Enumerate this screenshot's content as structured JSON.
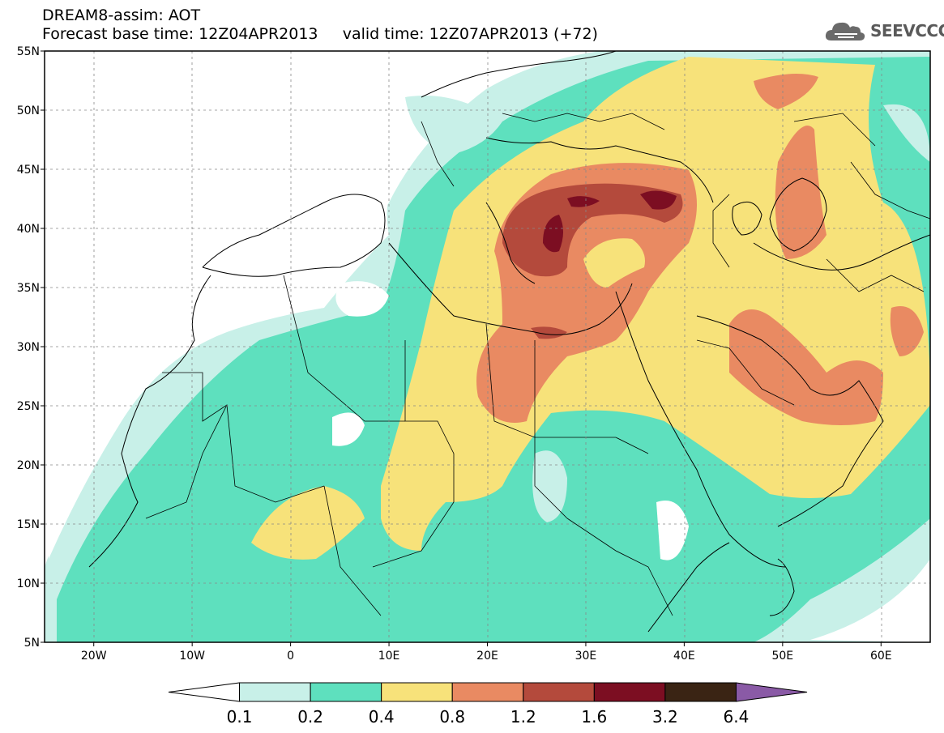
{
  "header": {
    "title_line1": "DREAM8-assim: AOT",
    "title_line2": "Forecast base time: 12Z04APR2013     valid time: 12Z07APR2013 (+72)",
    "logo_text": "SEEVCCC"
  },
  "map": {
    "lat_labels": [
      "55N",
      "50N",
      "45N",
      "40N",
      "35N",
      "30N",
      "25N",
      "20N",
      "15N",
      "10N",
      "5N"
    ],
    "lon_labels": [
      "20W",
      "10W",
      "0",
      "10E",
      "20E",
      "30E",
      "40E",
      "50E",
      "60E"
    ],
    "extent": {
      "lon": [
        -25,
        65
      ],
      "lat": [
        5,
        55
      ]
    }
  },
  "legend": {
    "labels": [
      "0.1",
      "0.2",
      "0.4",
      "0.8",
      "1.2",
      "1.6",
      "3.2",
      "6.4"
    ],
    "colors": [
      "#ffffff",
      "#c8f0e8",
      "#5ee0be",
      "#f7e27a",
      "#e98a62",
      "#b44a3c",
      "#7c0e22",
      "#3a2414",
      "#8a5aa6"
    ]
  }
}
